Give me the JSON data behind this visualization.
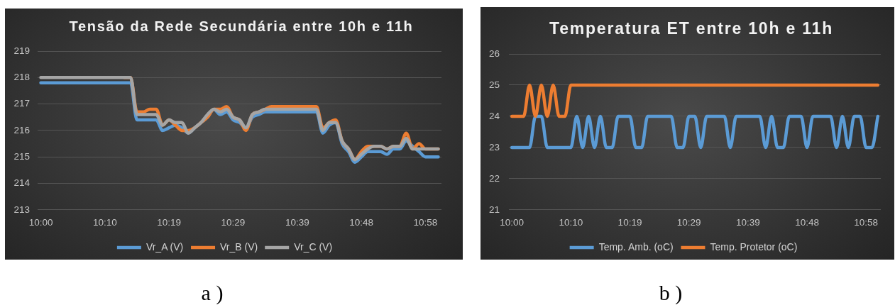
{
  "chart_data": [
    {
      "type": "line",
      "title": "Tensão da Rede Secundária entre 10h e 11h",
      "categories": [
        "10:00",
        null,
        null,
        null,
        null,
        null,
        null,
        null,
        null,
        null,
        "10:10",
        null,
        null,
        null,
        null,
        null,
        null,
        null,
        null,
        null,
        "10:19",
        null,
        null,
        null,
        null,
        null,
        null,
        null,
        null,
        null,
        "10:29",
        null,
        null,
        null,
        null,
        null,
        null,
        null,
        null,
        null,
        "10:39",
        null,
        null,
        null,
        null,
        null,
        null,
        null,
        null,
        null,
        "10:48",
        null,
        null,
        null,
        null,
        null,
        null,
        null,
        null,
        null,
        "10:58",
        null,
        null
      ],
      "series": [
        {
          "name": "Vr_A (V)",
          "color": "#5b9bd5",
          "values": [
            217.8,
            217.8,
            217.8,
            217.8,
            217.8,
            217.8,
            217.8,
            217.8,
            217.8,
            217.8,
            217.8,
            217.8,
            217.8,
            217.8,
            217.8,
            216.4,
            216.4,
            216.4,
            216.4,
            216.0,
            216.1,
            216.2,
            216.1,
            215.9,
            216.1,
            216.3,
            216.5,
            216.8,
            216.6,
            216.7,
            216.4,
            216.3,
            216.1,
            216.5,
            216.6,
            216.7,
            216.7,
            216.7,
            216.7,
            216.7,
            216.7,
            216.7,
            216.7,
            216.7,
            215.9,
            216.2,
            216.3,
            215.5,
            215.2,
            214.8,
            215.0,
            215.2,
            215.2,
            215.2,
            215.1,
            215.3,
            215.3,
            215.6,
            215.4,
            215.2,
            215.0,
            215.0,
            215.0
          ]
        },
        {
          "name": "Vr_B (V)",
          "color": "#ed7d31",
          "values": [
            null,
            null,
            null,
            null,
            null,
            null,
            null,
            null,
            null,
            null,
            null,
            null,
            null,
            218.0,
            218.0,
            216.7,
            216.7,
            216.8,
            216.8,
            216.2,
            216.4,
            216.2,
            216.0,
            216.0,
            216.1,
            216.3,
            216.5,
            216.8,
            216.8,
            216.9,
            216.5,
            216.4,
            216.0,
            216.6,
            216.7,
            216.8,
            216.9,
            216.9,
            216.9,
            216.9,
            216.9,
            216.9,
            216.9,
            216.9,
            216.1,
            216.3,
            216.4,
            215.6,
            215.3,
            214.9,
            215.2,
            215.4,
            215.4,
            215.4,
            215.3,
            215.4,
            215.4,
            215.9,
            215.3,
            215.5,
            215.3,
            215.3,
            215.3
          ]
        },
        {
          "name": "Vr_C (V)",
          "color": "#a5a5a5",
          "values": [
            218.0,
            218.0,
            218.0,
            218.0,
            218.0,
            218.0,
            218.0,
            218.0,
            218.0,
            218.0,
            218.0,
            218.0,
            218.0,
            218.0,
            218.0,
            216.6,
            216.6,
            216.6,
            216.6,
            216.2,
            216.4,
            216.3,
            216.3,
            215.9,
            216.1,
            216.3,
            216.6,
            216.8,
            216.7,
            216.8,
            216.5,
            216.4,
            216.1,
            216.6,
            216.7,
            216.8,
            216.8,
            216.8,
            216.8,
            216.8,
            216.8,
            216.8,
            216.8,
            216.8,
            216.0,
            216.3,
            216.3,
            215.6,
            215.3,
            214.9,
            215.1,
            215.3,
            215.4,
            215.4,
            215.3,
            215.4,
            215.4,
            215.7,
            215.3,
            215.3,
            215.3,
            215.3,
            215.3
          ]
        }
      ],
      "ylim": [
        213,
        219
      ],
      "yticks": [
        213,
        214,
        215,
        216,
        217,
        218,
        219
      ],
      "grid": "y",
      "legend": "bottom",
      "marker": "none",
      "annotations": [
        "a )"
      ]
    },
    {
      "type": "line",
      "title": "Temperatura ET entre 10h e 11h",
      "categories": [
        "10:00",
        null,
        null,
        null,
        null,
        null,
        null,
        null,
        null,
        null,
        "10:10",
        null,
        null,
        null,
        null,
        null,
        null,
        null,
        null,
        null,
        "10:19",
        null,
        null,
        null,
        null,
        null,
        null,
        null,
        null,
        null,
        "10:29",
        null,
        null,
        null,
        null,
        null,
        null,
        null,
        null,
        null,
        "10:39",
        null,
        null,
        null,
        null,
        null,
        null,
        null,
        null,
        null,
        "10:48",
        null,
        null,
        null,
        null,
        null,
        null,
        null,
        null,
        null,
        "10:58",
        null,
        null
      ],
      "series": [
        {
          "name": "Temp. Amb. (oC)",
          "color": "#5b9bd5",
          "values": [
            23,
            23,
            23,
            23,
            24,
            24,
            23,
            23,
            23,
            23,
            23,
            24,
            23,
            24,
            23,
            24,
            23,
            23,
            24,
            24,
            24,
            23,
            23,
            24,
            24,
            24,
            24,
            24,
            23,
            23,
            24,
            24,
            23,
            24,
            24,
            24,
            24,
            23,
            24,
            24,
            24,
            24,
            24,
            23,
            24,
            23,
            23,
            24,
            24,
            24,
            23,
            24,
            24,
            24,
            24,
            23,
            24,
            23,
            24,
            24,
            23,
            23,
            24
          ]
        },
        {
          "name": "Temp. Protetor (oC)",
          "color": "#ed7d31",
          "values": [
            24,
            24,
            24,
            25,
            24,
            25,
            24,
            25,
            24,
            24,
            25,
            25,
            25,
            25,
            25,
            25,
            25,
            25,
            25,
            25,
            25,
            25,
            25,
            25,
            25,
            25,
            25,
            25,
            25,
            25,
            25,
            25,
            25,
            25,
            25,
            25,
            25,
            25,
            25,
            25,
            25,
            25,
            25,
            25,
            25,
            25,
            25,
            25,
            25,
            25,
            25,
            25,
            25,
            25,
            25,
            25,
            25,
            25,
            25,
            25,
            25,
            25,
            25
          ]
        }
      ],
      "ylim": [
        21,
        26
      ],
      "yticks": [
        21,
        22,
        23,
        24,
        25,
        26
      ],
      "grid": "y",
      "legend": "bottom",
      "marker": "none",
      "annotations": [
        "b )"
      ]
    }
  ]
}
